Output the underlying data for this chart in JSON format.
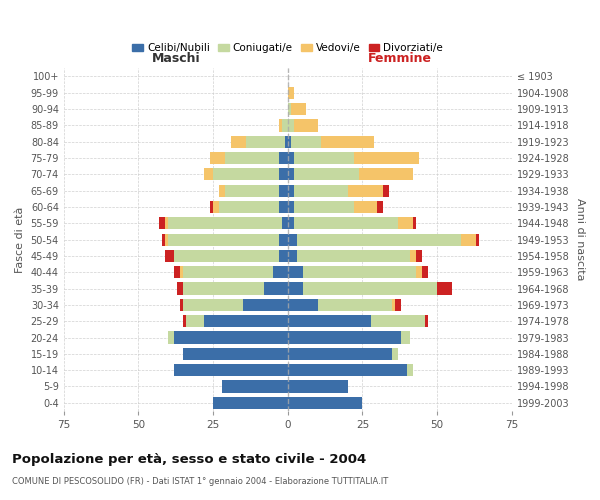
{
  "age_groups": [
    "100+",
    "95-99",
    "90-94",
    "85-89",
    "80-84",
    "75-79",
    "70-74",
    "65-69",
    "60-64",
    "55-59",
    "50-54",
    "45-49",
    "40-44",
    "35-39",
    "30-34",
    "25-29",
    "20-24",
    "15-19",
    "10-14",
    "5-9",
    "0-4"
  ],
  "birth_years": [
    "≤ 1903",
    "1904-1908",
    "1909-1913",
    "1914-1918",
    "1919-1923",
    "1924-1928",
    "1929-1933",
    "1934-1938",
    "1939-1943",
    "1944-1948",
    "1949-1953",
    "1954-1958",
    "1959-1963",
    "1964-1968",
    "1969-1973",
    "1974-1978",
    "1979-1983",
    "1984-1988",
    "1989-1993",
    "1994-1998",
    "1999-2003"
  ],
  "males": {
    "celibi": [
      0,
      0,
      0,
      0,
      1,
      3,
      3,
      3,
      3,
      2,
      3,
      3,
      5,
      8,
      15,
      28,
      38,
      35,
      38,
      22,
      25
    ],
    "coniugati": [
      0,
      0,
      0,
      2,
      13,
      18,
      22,
      18,
      20,
      38,
      37,
      35,
      30,
      27,
      20,
      6,
      2,
      0,
      0,
      0,
      0
    ],
    "vedovi": [
      0,
      0,
      0,
      1,
      5,
      5,
      3,
      2,
      2,
      1,
      1,
      0,
      1,
      0,
      0,
      0,
      0,
      0,
      0,
      0,
      0
    ],
    "divorziati": [
      0,
      0,
      0,
      0,
      0,
      0,
      0,
      0,
      1,
      2,
      1,
      3,
      2,
      2,
      1,
      1,
      0,
      0,
      0,
      0,
      0
    ]
  },
  "females": {
    "nubili": [
      0,
      0,
      0,
      0,
      1,
      2,
      2,
      2,
      2,
      2,
      3,
      3,
      5,
      5,
      10,
      28,
      38,
      35,
      40,
      20,
      25
    ],
    "coniugate": [
      0,
      0,
      1,
      2,
      10,
      20,
      22,
      18,
      20,
      35,
      55,
      38,
      38,
      45,
      25,
      18,
      3,
      2,
      2,
      0,
      0
    ],
    "vedove": [
      0,
      2,
      5,
      8,
      18,
      22,
      18,
      12,
      8,
      5,
      5,
      2,
      2,
      0,
      1,
      0,
      0,
      0,
      0,
      0,
      0
    ],
    "divorziate": [
      0,
      0,
      0,
      0,
      0,
      0,
      0,
      2,
      2,
      1,
      1,
      2,
      2,
      5,
      2,
      1,
      0,
      0,
      0,
      0,
      0
    ]
  },
  "colors": {
    "celibi": "#3b6ea8",
    "coniugati": "#c5d9a0",
    "vedovi": "#f5c469",
    "divorziati": "#cc2222"
  },
  "title": "Popolazione per età, sesso e stato civile - 2004",
  "subtitle": "COMUNE DI PESCOSOLIDO (FR) - Dati ISTAT 1° gennaio 2004 - Elaborazione TUTTITALIA.IT",
  "xlabel_left": "Maschi",
  "xlabel_right": "Femmine",
  "ylabel_left": "Fasce di età",
  "ylabel_right": "Anni di nascita",
  "xlim": 75,
  "legend_labels": [
    "Celibi/Nubili",
    "Coniugati/e",
    "Vedovi/e",
    "Divorziati/e"
  ],
  "bg_color": "#ffffff",
  "grid_color": "#cccccc"
}
